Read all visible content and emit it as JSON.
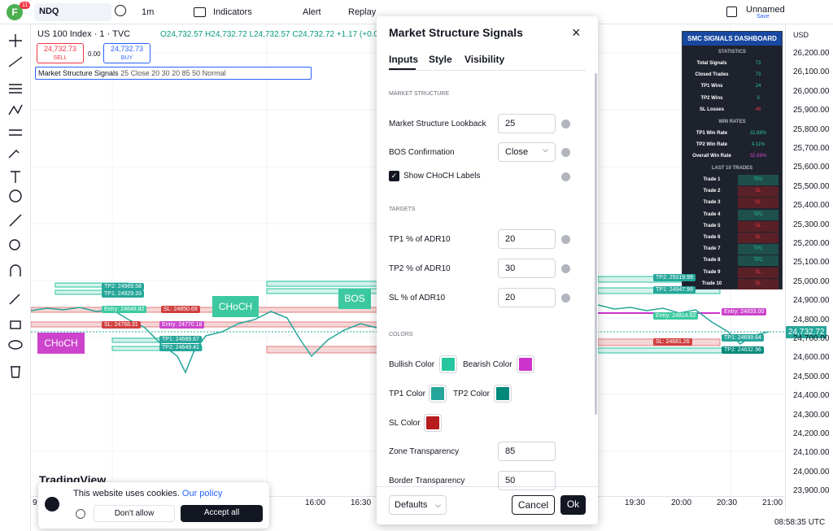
{
  "topbar": {
    "avatar": "F",
    "badge": "11",
    "symbol": "NDQ",
    "interval": "1m",
    "indicators": "Indicators",
    "alert": "Alert",
    "replay": "Replay",
    "layout": "Unnamed",
    "save": "Save"
  },
  "legend": {
    "symbol": "US 100 Index · 1 · TVC",
    "ohlc": "O24,732.57 H24,732.72 L24,732.57 C24,732.72 +1.17 (+0.0",
    "sell_price": "24,732.73",
    "sell": "SELL",
    "spread": "0.00",
    "buy_price": "24,732.73",
    "buy": "BUY",
    "indicator": "Market Structure Signals",
    "params": "25 Close 20 30 20 85 50 Normal"
  },
  "price_axis": {
    "currency": "USD",
    "ticks": [
      "26,200.00",
      "26,100.00",
      "26,000.00",
      "25,900.00",
      "25,800.00",
      "25,700.00",
      "25,600.00",
      "25,500.00",
      "25,400.00",
      "25,300.00",
      "25,200.00",
      "25,100.00",
      "25,000.00",
      "24,900.00",
      "24,800.00",
      "24,700.00",
      "24,600.00",
      "24,500.00",
      "24,400.00",
      "24,300.00",
      "24,200.00",
      "24,100.00",
      "24,000.00",
      "23,900.00"
    ],
    "current": "24,732.72"
  },
  "time_axis": {
    "ticks": [
      "9",
      "16:00",
      "16:30",
      "19:30",
      "20:00",
      "20:30",
      "21:00"
    ],
    "clock": "08:58:35 UTC"
  },
  "chart_labels": {
    "choch_left": "CHoCH",
    "choch_mid": "CHoCH",
    "bos": "BOS",
    "trades": [
      "TP2: 24969.58",
      "TP1: 24929.33",
      "Entry: 24848.82",
      "SL: 24850.69",
      "SL: 24768.31",
      "Entry: 24770.18",
      "TP1: 24689.67",
      "TP2: 24649.41",
      "TP2: 25019.99",
      "TP1: 24947.99",
      "Entry: 24814.62",
      "Entry: 24833.00",
      "SL: 24681.26",
      "TP1: 24699.64",
      "TP2: 24632.96"
    ],
    "watermark": "TradingView"
  },
  "dialog": {
    "title": "Market Structure Signals",
    "tabs": [
      "Inputs",
      "Style",
      "Visibility"
    ],
    "sections": {
      "structure": "MARKET STRUCTURE",
      "targets": "TARGETS",
      "colors": "COLORS"
    },
    "lookback": {
      "label": "Market Structure Lookback",
      "value": "25"
    },
    "bos": {
      "label": "BOS Confirmation",
      "value": "Close"
    },
    "choch": {
      "label": "Show CHoCH Labels"
    },
    "tp1": {
      "label": "TP1 % of ADR10",
      "value": "20"
    },
    "tp2": {
      "label": "TP2 % of ADR10",
      "value": "30"
    },
    "sl": {
      "label": "SL % of ADR10",
      "value": "20"
    },
    "bullish": "Bullish Color",
    "bearish": "Bearish Color",
    "tp1_color": "TP1 Color",
    "tp2_color": "TP2 Color",
    "sl_color": "SL Color",
    "zone": {
      "label": "Zone Transparency",
      "value": "85"
    },
    "border": {
      "label": "Border Transparency",
      "value": "50"
    },
    "defaults": "Defaults",
    "cancel": "Cancel",
    "ok": "Ok"
  },
  "dashboard": {
    "title": "SMC SIGNALS DASHBOARD",
    "statistics": "STATISTICS",
    "stats": [
      [
        "Total Signals",
        "73"
      ],
      [
        "Closed Trades",
        "73"
      ],
      [
        "TP1 Wins",
        "24"
      ],
      [
        "TP2 Wins",
        "3"
      ],
      [
        "SL Losses",
        "46"
      ]
    ],
    "win_rates": "WIN RATES",
    "rates": [
      [
        "TP1 Win Rate",
        "32.88%"
      ],
      [
        "TP2 Win Rate",
        "4.11%"
      ],
      [
        "Overall Win Rate",
        "32.88%"
      ]
    ],
    "last": "LAST 10 TRADES",
    "trades": [
      [
        "Trade 1",
        "TP1"
      ],
      [
        "Trade 2",
        "SL"
      ],
      [
        "Trade 3",
        "SL"
      ],
      [
        "Trade 4",
        "TP1"
      ],
      [
        "Trade 5",
        "SL"
      ],
      [
        "Trade 6",
        "SL"
      ],
      [
        "Trade 7",
        "TP1"
      ],
      [
        "Trade 8",
        "TP1"
      ],
      [
        "Trade 9",
        "SL"
      ],
      [
        "Trade 10",
        "SL"
      ]
    ]
  },
  "cookie": {
    "text": "This website uses cookies.",
    "link": "Our policy",
    "deny": "Don't allow",
    "accept": "Accept all"
  }
}
